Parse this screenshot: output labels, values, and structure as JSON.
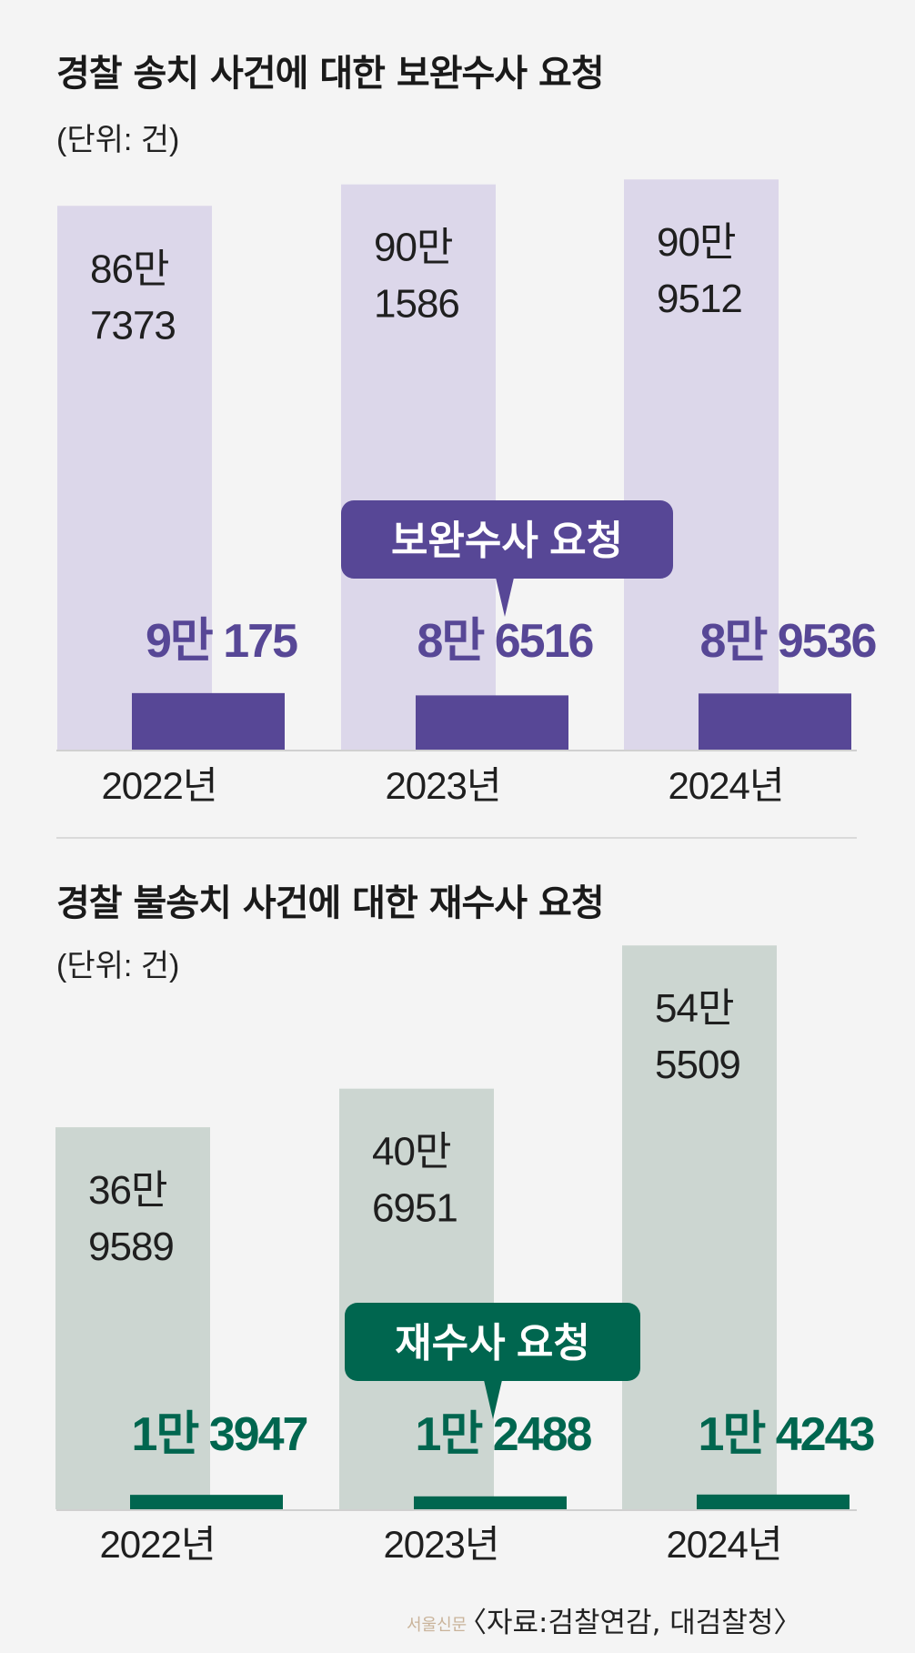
{
  "chart_data": [
    {
      "type": "bar",
      "title": "경찰 송치 사건에 대한 보완수사 요청",
      "unit": "(단위: 건)",
      "categories": [
        "2022년",
        "2023년",
        "2024년"
      ],
      "series": [
        {
          "values": [
            867373,
            901586,
            909512
          ],
          "labels": [
            "86만\n7373",
            "90만\n1586",
            "90만\n9512"
          ],
          "color": "#dcd7ea"
        },
        {
          "name": "보완수사 요청",
          "values": [
            90175,
            86516,
            89536
          ],
          "labels": [
            "9만 175",
            "8만 6516",
            "8만 9536"
          ],
          "color": "#574796"
        }
      ],
      "callout": "보완수사 요청",
      "ylim": [
        0,
        920000
      ]
    },
    {
      "type": "bar",
      "title": "경찰 불송치 사건에 대한 재수사 요청",
      "unit": "(단위: 건)",
      "categories": [
        "2022년",
        "2023년",
        "2024년"
      ],
      "series": [
        {
          "values": [
            369589,
            406951,
            545509
          ],
          "labels": [
            "36만\n9589",
            "40만\n6951",
            "54만\n5509"
          ],
          "color": "#ccd6d1"
        },
        {
          "name": "재수사 요청",
          "values": [
            13947,
            12488,
            14243
          ],
          "labels": [
            "1만 3947",
            "1만 2488",
            "1만 4243"
          ],
          "color": "#00664f"
        }
      ],
      "callout": "재수사 요청",
      "ylim": [
        0,
        551000
      ]
    }
  ],
  "footer": {
    "source": "〈자료:검찰연감, 대검찰청〉",
    "watermark": "서울신문"
  }
}
